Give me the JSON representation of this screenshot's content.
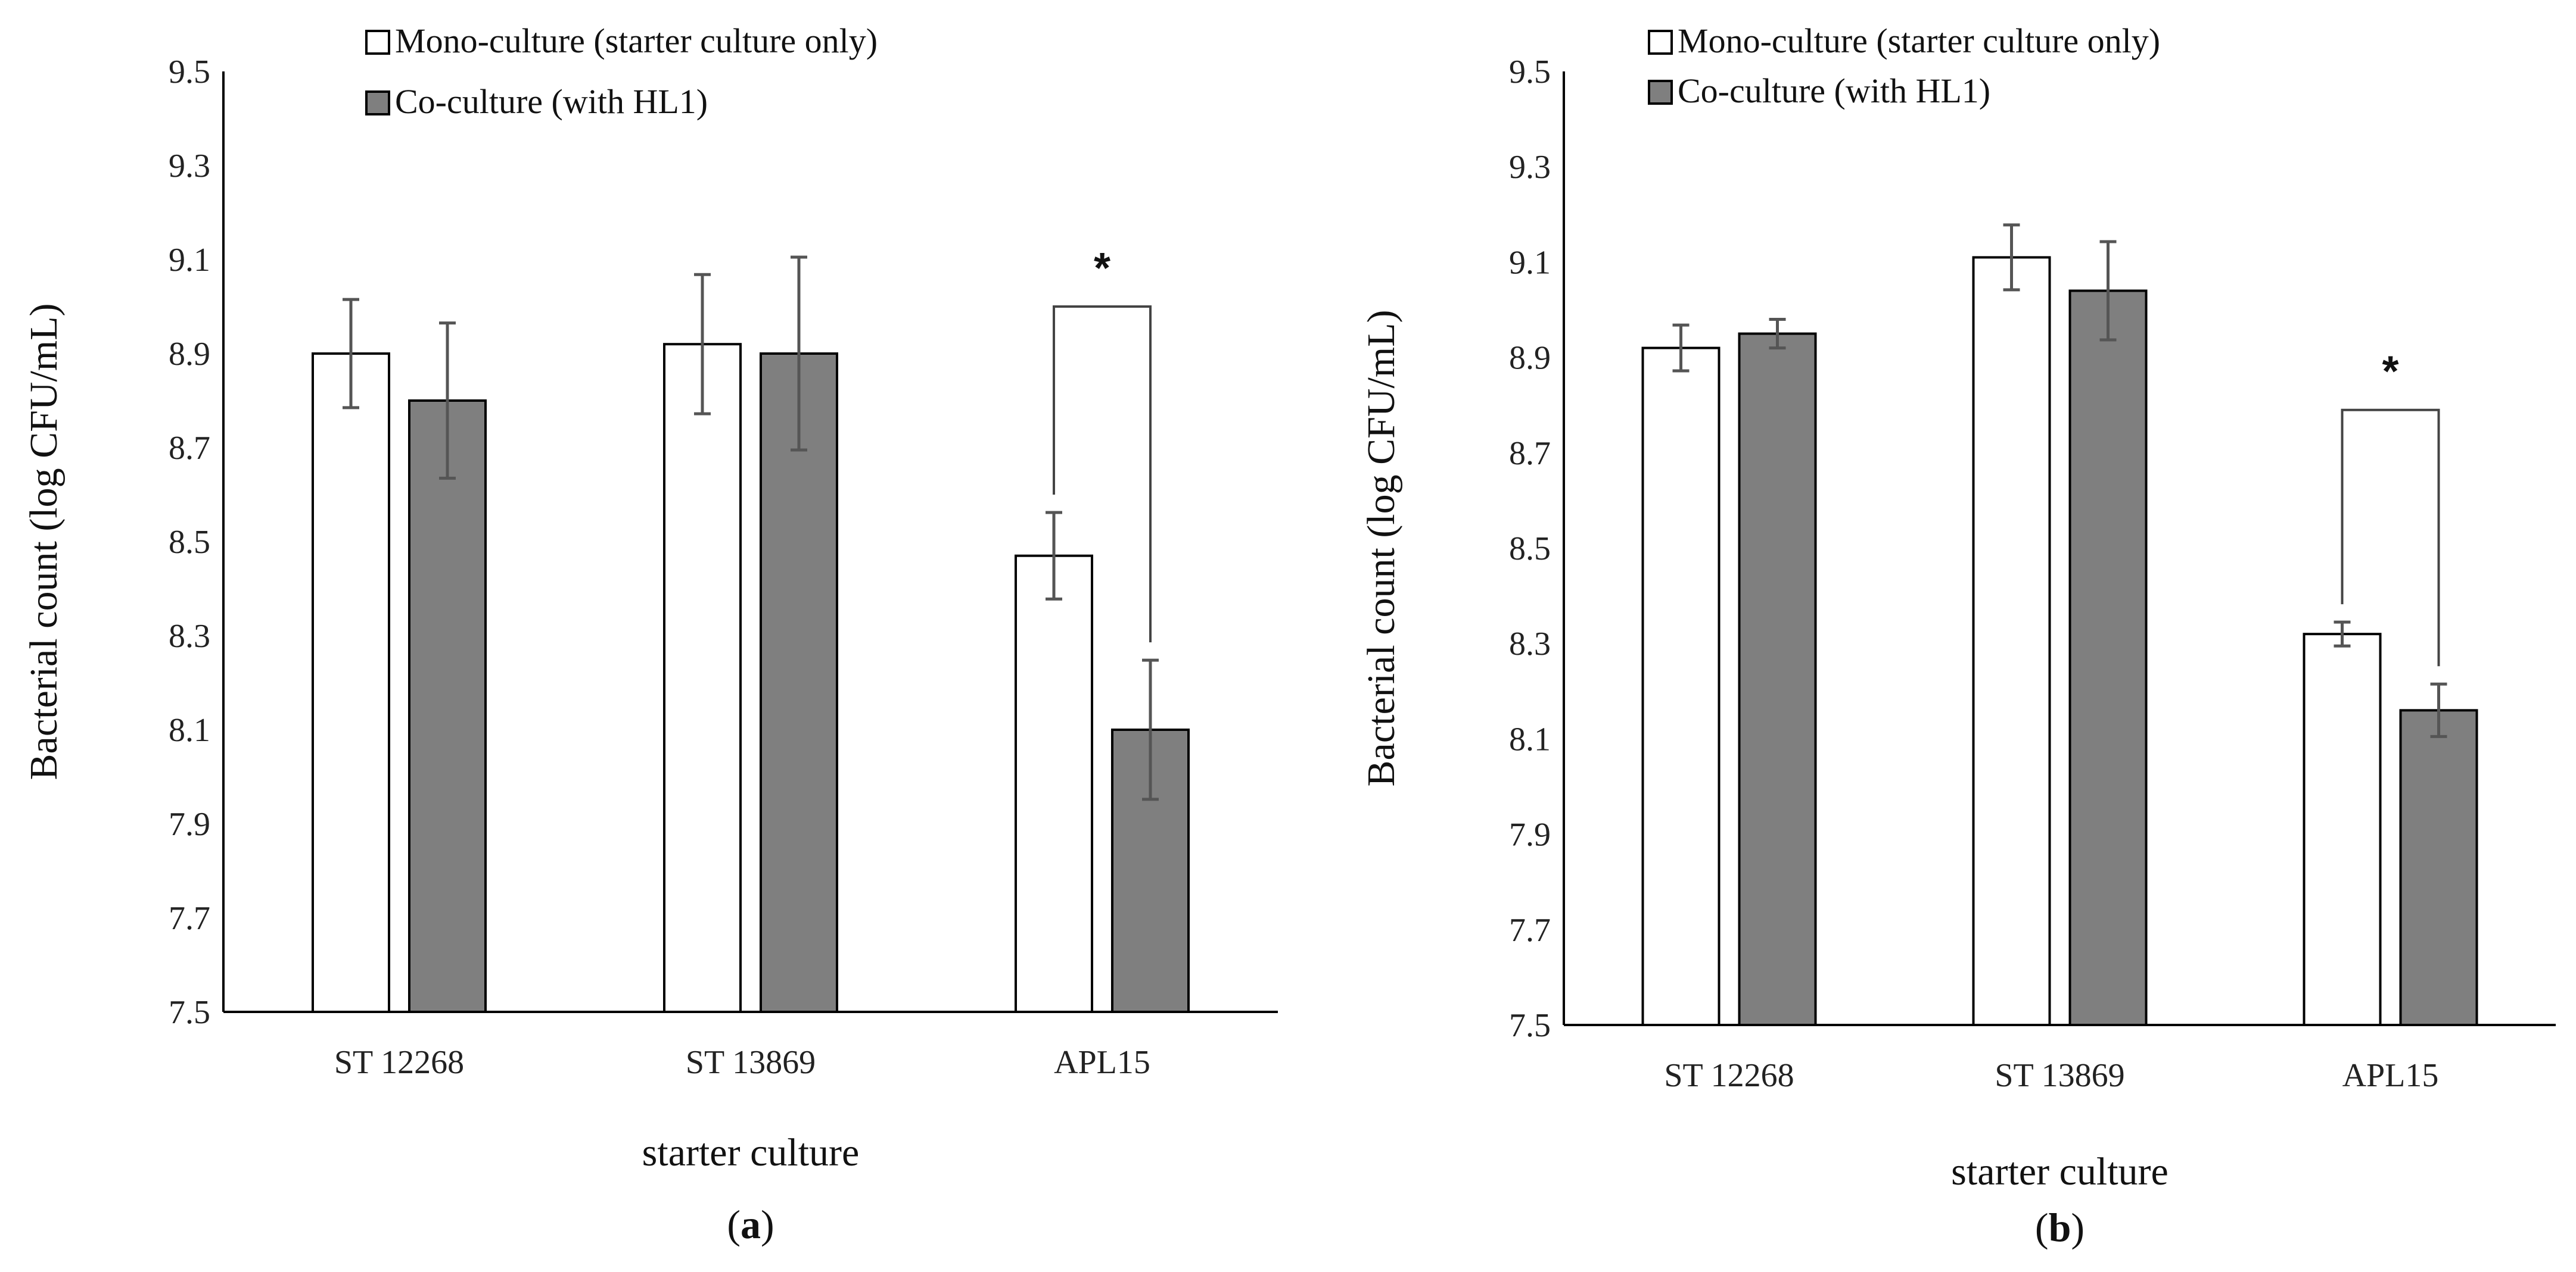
{
  "colors": {
    "mono": "#ffffff",
    "co": "#7f7f7f",
    "stroke": "#000000",
    "error": "#555555"
  },
  "chart_data": [
    {
      "type": "bar",
      "panel_label": "(a)",
      "panel_letter": "a",
      "categories": [
        "ST 12268",
        "ST 13869",
        "APL15"
      ],
      "series": [
        {
          "name": "Mono-culture (starter culture only)",
          "values": [
            8.9,
            8.92,
            8.47
          ],
          "errors": [
            0.115,
            0.148,
            0.092
          ]
        },
        {
          "name": "Co-culture (with HL1)",
          "values": [
            8.8,
            8.9,
            8.1
          ],
          "errors": [
            0.165,
            0.205,
            0.148
          ]
        }
      ],
      "xlabel": "starter culture",
      "ylabel": "Bacterial count (log CFU/mL)",
      "ylim": [
        7.5,
        9.5
      ],
      "yticks": [
        "7.5",
        "7.7",
        "7.9",
        "8.1",
        "8.3",
        "8.5",
        "8.7",
        "8.9",
        "9.1",
        "9.3",
        "9.5"
      ],
      "legend": "top-center",
      "significance": {
        "category": "APL15",
        "label": "*",
        "bracket_top": 9.0
      }
    },
    {
      "type": "bar",
      "panel_label": "(b)",
      "panel_letter": "b",
      "categories": [
        "ST 12268",
        "ST 13869",
        "APL15"
      ],
      "series": [
        {
          "name": "Mono-culture (starter culture only)",
          "values": [
            8.92,
            9.11,
            8.32
          ],
          "errors": [
            0.048,
            0.068,
            0.025
          ]
        },
        {
          "name": "Co-culture (with HL1)",
          "values": [
            8.95,
            9.04,
            8.16
          ],
          "errors": [
            0.03,
            0.103,
            0.055
          ]
        }
      ],
      "xlabel": "starter culture",
      "ylabel": "Bacterial count (log CFU/mL)",
      "ylim": [
        7.5,
        9.5
      ],
      "yticks": [
        "7.5",
        "7.7",
        "7.9",
        "8.1",
        "8.3",
        "8.5",
        "8.7",
        "8.9",
        "9.1",
        "9.3",
        "9.5"
      ],
      "legend": "top-center",
      "significance": {
        "category": "APL15",
        "label": "*",
        "bracket_top": 8.79
      }
    }
  ]
}
